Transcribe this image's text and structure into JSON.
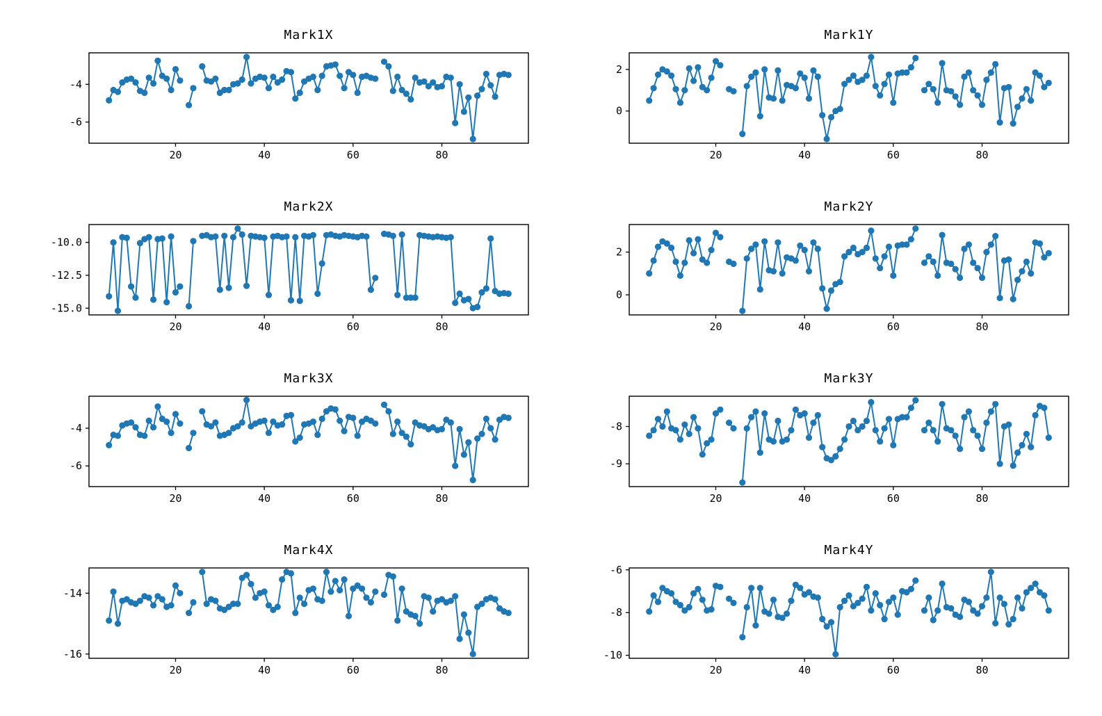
{
  "figure": {
    "background": "#ffffff",
    "series_color": "#1f77b4",
    "axis_color": "#000000"
  },
  "chart_data": [
    {
      "id": "mark1x",
      "type": "line",
      "title": "Mark1X",
      "legend": null,
      "grid": false,
      "x_start": 5,
      "x_step": 1,
      "xlim": [
        0.5,
        99.5
      ],
      "ylim": [
        -7.12,
        -2.33
      ],
      "xticks": [
        {
          "label": "20",
          "value": 20
        },
        {
          "label": "40",
          "value": 40
        },
        {
          "label": "60",
          "value": 60
        },
        {
          "label": "80",
          "value": 80
        }
      ],
      "yticks": [
        {
          "label": "-4",
          "value": -4
        },
        {
          "label": "-6",
          "value": -6
        }
      ],
      "values": [
        -4.85,
        -4.3,
        -4.4,
        -3.9,
        -3.75,
        -3.7,
        -3.9,
        -4.35,
        -4.45,
        -3.65,
        -3.95,
        -2.75,
        -3.55,
        -3.7,
        -4.3,
        -3.2,
        -3.8,
        null,
        -5.1,
        -4.2,
        null,
        -3.05,
        -3.8,
        -3.85,
        -3.7,
        -4.45,
        -4.3,
        -4.3,
        -4.0,
        -3.95,
        -3.75,
        -2.55,
        -3.95,
        -3.7,
        -3.6,
        -3.65,
        -4.2,
        -3.6,
        -3.9,
        -3.75,
        -3.3,
        -3.35,
        -4.75,
        -4.45,
        -3.85,
        -3.7,
        -3.6,
        -4.3,
        -3.55,
        -3.05,
        -3.0,
        -2.95,
        -3.55,
        -4.2,
        -3.35,
        -3.5,
        -4.45,
        -3.6,
        -3.55,
        -3.65,
        -3.7,
        null,
        -2.8,
        -3.05,
        -4.35,
        -3.6,
        -4.3,
        -4.5,
        -4.8,
        -3.65,
        -3.9,
        -3.85,
        -4.1,
        -3.9,
        -4.15,
        -4.1,
        -3.6,
        -3.65,
        -6.05,
        -4.0,
        -5.45,
        -4.7,
        -6.9,
        -4.6,
        -4.25,
        -3.45,
        -4.05,
        -4.65,
        -3.5,
        -3.45,
        -3.5
      ]
    },
    {
      "id": "mark1y",
      "type": "line",
      "title": "Mark1Y",
      "legend": null,
      "grid": false,
      "x_start": 5,
      "x_step": 1,
      "xlim": [
        0.5,
        99.5
      ],
      "ylim": [
        -1.55,
        2.8
      ],
      "xticks": [
        {
          "label": "20",
          "value": 20
        },
        {
          "label": "40",
          "value": 40
        },
        {
          "label": "60",
          "value": 60
        },
        {
          "label": "80",
          "value": 80
        }
      ],
      "yticks": [
        {
          "label": "2",
          "value": 2
        },
        {
          "label": "0",
          "value": 0
        }
      ],
      "values": [
        0.5,
        1.1,
        1.75,
        2.0,
        1.9,
        1.7,
        1.05,
        0.4,
        1.0,
        2.05,
        1.45,
        2.1,
        1.15,
        1.0,
        1.6,
        2.4,
        2.2,
        null,
        1.05,
        0.95,
        null,
        -1.1,
        1.2,
        1.65,
        1.85,
        -0.25,
        2.0,
        0.65,
        0.6,
        1.95,
        0.5,
        1.25,
        1.2,
        1.1,
        1.8,
        1.6,
        0.6,
        1.95,
        1.65,
        -0.2,
        -1.35,
        -0.3,
        0.0,
        0.1,
        1.3,
        1.5,
        1.7,
        1.4,
        1.5,
        1.7,
        2.6,
        1.2,
        0.75,
        1.3,
        1.75,
        0.4,
        1.8,
        1.85,
        1.85,
        2.1,
        2.55,
        null,
        1.0,
        1.3,
        1.05,
        0.4,
        2.3,
        1.0,
        0.95,
        0.7,
        0.3,
        1.65,
        1.85,
        1.0,
        0.75,
        0.3,
        1.5,
        1.85,
        2.25,
        -0.55,
        1.1,
        1.15,
        -0.6,
        0.2,
        0.6,
        1.05,
        0.5,
        1.85,
        1.7,
        1.15,
        1.35
      ]
    },
    {
      "id": "mark2x",
      "type": "line",
      "title": "Mark2X",
      "legend": null,
      "grid": false,
      "x_start": 5,
      "x_step": 1,
      "xlim": [
        0.5,
        99.5
      ],
      "ylim": [
        -15.51,
        -8.64
      ],
      "xticks": [
        {
          "label": "20",
          "value": 20
        },
        {
          "label": "40",
          "value": 40
        },
        {
          "label": "60",
          "value": 60
        },
        {
          "label": "80",
          "value": 80
        }
      ],
      "yticks": [
        {
          "label": "-10.0",
          "value": -10.0
        },
        {
          "label": "-12.5",
          "value": -12.5
        },
        {
          "label": "-15.0",
          "value": -15.0
        }
      ],
      "values": [
        -14.1,
        -10.0,
        -15.2,
        -9.6,
        -9.65,
        -13.35,
        -14.2,
        -10.05,
        -9.75,
        -9.6,
        -14.35,
        -9.75,
        -9.7,
        -14.55,
        -9.55,
        -13.8,
        -13.35,
        null,
        -14.85,
        -9.9,
        null,
        -9.5,
        -9.45,
        -9.6,
        -9.55,
        -13.6,
        -9.5,
        -13.45,
        -9.6,
        -8.95,
        -9.4,
        -13.3,
        -9.5,
        -9.55,
        -9.6,
        -9.65,
        -14.0,
        -9.55,
        -9.5,
        -9.6,
        -9.55,
        -14.4,
        -9.6,
        -14.45,
        -9.5,
        -9.55,
        -9.45,
        -13.9,
        -11.6,
        -9.45,
        -9.4,
        -9.5,
        -9.55,
        -9.45,
        -9.5,
        -9.55,
        -9.6,
        -9.5,
        -9.55,
        -13.6,
        -12.7,
        null,
        -9.35,
        -9.4,
        -9.5,
        -14.0,
        -9.4,
        -14.2,
        -14.2,
        -14.2,
        -9.45,
        -9.5,
        -9.55,
        -9.6,
        -9.55,
        -9.6,
        -9.65,
        -9.6,
        -14.6,
        -13.9,
        -14.4,
        -14.3,
        -15.0,
        -14.9,
        -13.8,
        -13.5,
        -9.7,
        -13.7,
        -13.9,
        -13.85,
        -13.9
      ]
    },
    {
      "id": "mark2y",
      "type": "line",
      "title": "Mark2Y",
      "legend": null,
      "grid": false,
      "x_start": 5,
      "x_step": 1,
      "xlim": [
        0.5,
        99.5
      ],
      "ylim": [
        -0.94,
        3.29
      ],
      "xticks": [
        {
          "label": "20",
          "value": 20
        },
        {
          "label": "40",
          "value": 40
        },
        {
          "label": "60",
          "value": 60
        },
        {
          "label": "80",
          "value": 80
        }
      ],
      "yticks": [
        {
          "label": "2",
          "value": 2
        },
        {
          "label": "0",
          "value": 0
        }
      ],
      "values": [
        1.0,
        1.6,
        2.25,
        2.5,
        2.4,
        2.2,
        1.55,
        0.9,
        1.5,
        2.55,
        1.95,
        2.6,
        1.65,
        1.5,
        2.1,
        2.9,
        2.7,
        null,
        1.55,
        1.45,
        null,
        -0.75,
        1.7,
        2.15,
        2.35,
        0.25,
        2.5,
        1.15,
        1.1,
        2.45,
        1.0,
        1.75,
        1.7,
        1.6,
        2.3,
        2.1,
        1.1,
        2.45,
        2.15,
        0.3,
        -0.65,
        0.2,
        0.5,
        0.6,
        1.8,
        2.0,
        2.2,
        1.9,
        2.0,
        2.2,
        3.0,
        1.7,
        1.25,
        1.8,
        2.25,
        0.9,
        2.3,
        2.35,
        2.35,
        2.6,
        3.1,
        null,
        1.5,
        1.8,
        1.55,
        0.9,
        2.8,
        1.5,
        1.45,
        1.2,
        0.8,
        2.15,
        2.35,
        1.5,
        1.25,
        0.8,
        2.0,
        2.35,
        2.75,
        -0.15,
        1.6,
        1.65,
        -0.2,
        0.7,
        1.1,
        1.55,
        1.0,
        2.45,
        2.4,
        1.75,
        1.95
      ]
    },
    {
      "id": "mark3x",
      "type": "line",
      "title": "Mark3X",
      "legend": null,
      "grid": false,
      "x_start": 5,
      "x_step": 1,
      "xlim": [
        0.5,
        99.5
      ],
      "ylim": [
        -7.1,
        -2.3
      ],
      "xticks": [
        {
          "label": "20",
          "value": 20
        },
        {
          "label": "40",
          "value": 40
        },
        {
          "label": "60",
          "value": 60
        },
        {
          "label": "80",
          "value": 80
        }
      ],
      "yticks": [
        {
          "label": "-4",
          "value": -4
        },
        {
          "label": "-6",
          "value": -6
        }
      ],
      "values": [
        -4.9,
        -4.35,
        -4.4,
        -3.85,
        -3.75,
        -3.7,
        -3.95,
        -4.35,
        -4.4,
        -3.6,
        -3.95,
        -2.85,
        -3.5,
        -3.65,
        -4.25,
        -3.25,
        -3.75,
        null,
        -5.05,
        -4.25,
        null,
        -3.1,
        -3.8,
        -3.9,
        -3.7,
        -4.4,
        -4.35,
        -4.25,
        -4.0,
        -3.9,
        -3.7,
        -2.5,
        -3.9,
        -3.75,
        -3.65,
        -3.6,
        -4.25,
        -3.65,
        -3.85,
        -3.8,
        -3.35,
        -3.3,
        -4.7,
        -4.5,
        -3.8,
        -3.75,
        -3.65,
        -4.35,
        -3.5,
        -3.1,
        -2.95,
        -3.0,
        -3.6,
        -4.15,
        -3.4,
        -3.45,
        -4.4,
        -3.65,
        -3.5,
        -3.6,
        -3.75,
        null,
        -2.75,
        -3.1,
        -4.3,
        -3.65,
        -4.25,
        -4.45,
        -4.85,
        -3.7,
        -3.85,
        -3.9,
        -4.05,
        -3.95,
        -4.1,
        -4.05,
        -3.55,
        -3.7,
        -6.0,
        -4.05,
        -5.4,
        -4.75,
        -6.75,
        -4.55,
        -4.3,
        -3.5,
        -4.0,
        -4.6,
        -3.55,
        -3.4,
        -3.45
      ]
    },
    {
      "id": "mark3y",
      "type": "line",
      "title": "Mark3Y",
      "legend": null,
      "grid": false,
      "x_start": 5,
      "x_step": 1,
      "xlim": [
        0.5,
        99.5
      ],
      "ylim": [
        -9.61,
        -7.19
      ],
      "xticks": [
        {
          "label": "20",
          "value": 20
        },
        {
          "label": "40",
          "value": 40
        },
        {
          "label": "60",
          "value": 60
        },
        {
          "label": "80",
          "value": 80
        }
      ],
      "yticks": [
        {
          "label": "-8",
          "value": -8
        },
        {
          "label": "-9",
          "value": -9
        }
      ],
      "values": [
        -8.25,
        -8.1,
        -7.8,
        -8.0,
        -7.6,
        -8.05,
        -8.1,
        -8.35,
        -7.95,
        -8.2,
        -7.75,
        -8.05,
        -8.75,
        -8.45,
        -8.35,
        -7.65,
        -7.55,
        null,
        -7.9,
        -8.05,
        null,
        -9.5,
        -8.05,
        -7.75,
        -7.6,
        -8.7,
        -7.65,
        -8.35,
        -8.4,
        -7.85,
        -8.4,
        -8.35,
        -8.1,
        -7.55,
        -7.7,
        -7.65,
        -8.3,
        -7.9,
        -7.7,
        -8.55,
        -8.85,
        -8.9,
        -8.8,
        -8.6,
        -8.35,
        -8.0,
        -7.85,
        -8.1,
        -8.0,
        -7.85,
        -7.35,
        -8.1,
        -8.4,
        -8.05,
        -7.8,
        -8.5,
        -7.8,
        -7.75,
        -7.75,
        -7.5,
        -7.3,
        null,
        -8.1,
        -7.9,
        -8.1,
        -8.4,
        -7.4,
        -8.05,
        -8.1,
        -8.25,
        -8.6,
        -7.75,
        -7.6,
        -8.1,
        -8.25,
        -8.6,
        -7.9,
        -7.6,
        -7.4,
        -9.0,
        -8.0,
        -7.95,
        -9.05,
        -8.7,
        -8.5,
        -8.2,
        -8.55,
        -7.7,
        -7.45,
        -7.5,
        -8.3
      ]
    },
    {
      "id": "mark4x",
      "type": "line",
      "title": "Mark4X",
      "legend": null,
      "grid": false,
      "x_start": 5,
      "x_step": 1,
      "xlim": [
        0.5,
        99.5
      ],
      "ylim": [
        -16.14,
        -13.17
      ],
      "xticks": [
        {
          "label": "20",
          "value": 20
        },
        {
          "label": "40",
          "value": 40
        },
        {
          "label": "60",
          "value": 60
        },
        {
          "label": "80",
          "value": 80
        }
      ],
      "yticks": [
        {
          "label": "-14",
          "value": -14
        },
        {
          "label": "-16",
          "value": -16
        }
      ],
      "values": [
        -14.9,
        -13.95,
        -15.0,
        -14.25,
        -14.2,
        -14.3,
        -14.35,
        -14.25,
        -14.1,
        -14.15,
        -14.4,
        -14.1,
        -14.2,
        -14.45,
        -14.4,
        -13.75,
        -14.0,
        null,
        -14.65,
        -14.3,
        null,
        -13.3,
        -14.35,
        -14.2,
        -14.25,
        -14.5,
        -14.55,
        -14.45,
        -14.35,
        -14.35,
        -13.5,
        -13.4,
        -13.7,
        -14.15,
        -14.0,
        -13.95,
        -14.4,
        -14.55,
        -14.45,
        -13.55,
        -13.3,
        -13.35,
        -14.65,
        -14.15,
        -14.35,
        -13.9,
        -13.85,
        -14.2,
        -14.25,
        -13.3,
        -13.95,
        -13.6,
        -13.9,
        -13.55,
        -14.75,
        -13.85,
        -13.75,
        -13.85,
        -14.15,
        -14.3,
        -13.95,
        null,
        -14.05,
        -13.4,
        -13.45,
        -14.9,
        -13.85,
        -14.6,
        -14.7,
        -14.75,
        -15.0,
        -14.1,
        -14.15,
        -14.6,
        -14.25,
        -14.2,
        -14.3,
        -14.25,
        -14.1,
        -15.5,
        -14.7,
        -15.3,
        -16.0,
        -14.45,
        -14.35,
        -14.2,
        -14.15,
        -14.2,
        -14.5,
        -14.6,
        -14.65
      ]
    },
    {
      "id": "mark4y",
      "type": "line",
      "title": "Mark4Y",
      "legend": null,
      "grid": false,
      "x_start": 5,
      "x_step": 1,
      "xlim": [
        0.5,
        99.5
      ],
      "ylim": [
        -10.14,
        -5.91
      ],
      "xticks": [
        {
          "label": "20",
          "value": 20
        },
        {
          "label": "40",
          "value": 40
        },
        {
          "label": "60",
          "value": 60
        },
        {
          "label": "80",
          "value": 80
        }
      ],
      "yticks": [
        {
          "label": "-6",
          "value": -6
        },
        {
          "label": "-8",
          "value": -8
        },
        {
          "label": "-10",
          "value": -10
        }
      ],
      "values": [
        -7.95,
        -7.2,
        -7.5,
        -6.85,
        -7.0,
        -7.1,
        -7.5,
        -7.65,
        -7.9,
        -7.75,
        -7.1,
        -6.9,
        -7.4,
        -7.9,
        -7.85,
        -6.75,
        -6.8,
        null,
        -7.35,
        -7.55,
        null,
        -9.15,
        -7.75,
        -6.85,
        -8.6,
        -6.85,
        -7.95,
        -8.05,
        -7.4,
        -8.2,
        -8.25,
        -8.05,
        -7.45,
        -6.7,
        -6.85,
        -7.15,
        -7.05,
        -7.25,
        -7.3,
        -8.3,
        -8.65,
        -8.45,
        -9.95,
        -7.75,
        -7.45,
        -7.2,
        -7.7,
        -7.55,
        -7.35,
        -6.8,
        -7.9,
        -7.1,
        -7.65,
        -8.3,
        -7.5,
        -7.3,
        -8.1,
        -7.0,
        -7.05,
        -6.9,
        -6.5,
        null,
        -7.9,
        -7.3,
        -8.35,
        -7.9,
        -6.65,
        -7.75,
        -7.8,
        -8.1,
        -8.2,
        -7.4,
        -7.5,
        -7.9,
        -8.05,
        -7.7,
        -7.3,
        -6.1,
        -8.5,
        -7.3,
        -7.6,
        -8.55,
        -8.3,
        -7.3,
        -7.8,
        -7.05,
        -6.85,
        -6.65,
        -7.05,
        -7.2,
        -7.9
      ]
    }
  ]
}
